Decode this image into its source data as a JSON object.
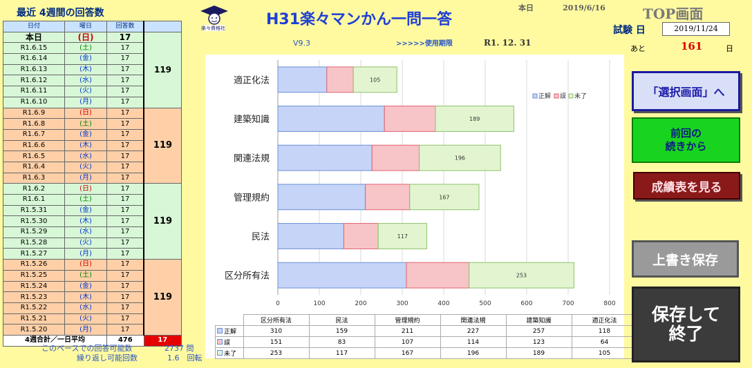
{
  "left": {
    "title": "最近 4週間の回答数",
    "headers": [
      "日付",
      "曜日",
      "回答数"
    ],
    "rows": [
      {
        "date": "本日",
        "dow": "(日)",
        "n": "17"
      },
      {
        "date": "R1.6.15",
        "dow": "(土)",
        "n": "17"
      },
      {
        "date": "R1.6.14",
        "dow": "(金)",
        "n": "17"
      },
      {
        "date": "R1.6.13",
        "dow": "(木)",
        "n": "17"
      },
      {
        "date": "R1.6.12",
        "dow": "(水)",
        "n": "17"
      },
      {
        "date": "R1.6.11",
        "dow": "(火)",
        "n": "17"
      },
      {
        "date": "R1.6.10",
        "dow": "(月)",
        "n": "17"
      },
      {
        "date": "R1.6.9",
        "dow": "(日)",
        "n": "17"
      },
      {
        "date": "R1.6.8",
        "dow": "(土)",
        "n": "17"
      },
      {
        "date": "R1.6.7",
        "dow": "(金)",
        "n": "17"
      },
      {
        "date": "R1.6.6",
        "dow": "(木)",
        "n": "17"
      },
      {
        "date": "R1.6.5",
        "dow": "(水)",
        "n": "17"
      },
      {
        "date": "R1.6.4",
        "dow": "(火)",
        "n": "17"
      },
      {
        "date": "R1.6.3",
        "dow": "(月)",
        "n": "17"
      },
      {
        "date": "R1.6.2",
        "dow": "(日)",
        "n": "17"
      },
      {
        "date": "R1.6.1",
        "dow": "(土)",
        "n": "17"
      },
      {
        "date": "R1.5.31",
        "dow": "(金)",
        "n": "17"
      },
      {
        "date": "R1.5.30",
        "dow": "(木)",
        "n": "17"
      },
      {
        "date": "R1.5.29",
        "dow": "(水)",
        "n": "17"
      },
      {
        "date": "R1.5.28",
        "dow": "(火)",
        "n": "17"
      },
      {
        "date": "R1.5.27",
        "dow": "(月)",
        "n": "17"
      },
      {
        "date": "R1.5.26",
        "dow": "(日)",
        "n": "17"
      },
      {
        "date": "R1.5.25",
        "dow": "(土)",
        "n": "17"
      },
      {
        "date": "R1.5.24",
        "dow": "(金)",
        "n": "17"
      },
      {
        "date": "R1.5.23",
        "dow": "(木)",
        "n": "17"
      },
      {
        "date": "R1.5.22",
        "dow": "(水)",
        "n": "17"
      },
      {
        "date": "R1.5.21",
        "dow": "(火)",
        "n": "17"
      },
      {
        "date": "R1.5.20",
        "dow": "(月)",
        "n": "17"
      }
    ],
    "week_totals": [
      "119",
      "119",
      "119",
      "119"
    ],
    "footer_label": "4週合計／一日平均",
    "footer_total": "476",
    "footer_avg": "17",
    "pace_label": "このペースでの回答可能数",
    "pace_value": "2737 問",
    "repeat_label": "繰り返し可能回数",
    "repeat_value": "1.6　回転"
  },
  "header": {
    "logo_text": "楽々資格社",
    "title": "H31楽々マンかん一問一答",
    "today_label": "本日",
    "today_date": "2019/6/16",
    "top_label": "TOP画面",
    "exam_label": "試験 日",
    "exam_date": "2019/11/24",
    "remain_prefix": "あと",
    "remain_days": "161",
    "remain_suffix": "日",
    "version": "V9.3",
    "use_label": ">>>>>使用期限",
    "expiry": "R1. 12. 31"
  },
  "chart_data": {
    "type": "bar",
    "orientation": "horizontal",
    "stacked": true,
    "categories": [
      "区分所有法",
      "民法",
      "管理規約",
      "関連法規",
      "建築知識",
      "適正化法"
    ],
    "series": [
      {
        "name": "正解",
        "values": [
          310,
          159,
          211,
          227,
          257,
          118
        ],
        "color": "#c5d4f7"
      },
      {
        "name": "誤",
        "values": [
          151,
          83,
          107,
          114,
          123,
          64
        ],
        "color": "#f7c5c8"
      },
      {
        "name": "未了",
        "values": [
          253,
          117,
          167,
          196,
          189,
          105
        ],
        "color": "#e3f5d0"
      }
    ],
    "xlim": [
      0,
      800
    ],
    "xticks": [
      0,
      100,
      200,
      300,
      400,
      500,
      600,
      700,
      800
    ],
    "legend": "top-right",
    "grid": true
  },
  "buttons": {
    "select": "「選択画面」へ",
    "continue_line1": "前回の",
    "continue_line2": "続きから",
    "results": "成績表を見る",
    "overwrite": "上書き保存",
    "save_exit_line1": "保存して",
    "save_exit_line2": "終了"
  }
}
